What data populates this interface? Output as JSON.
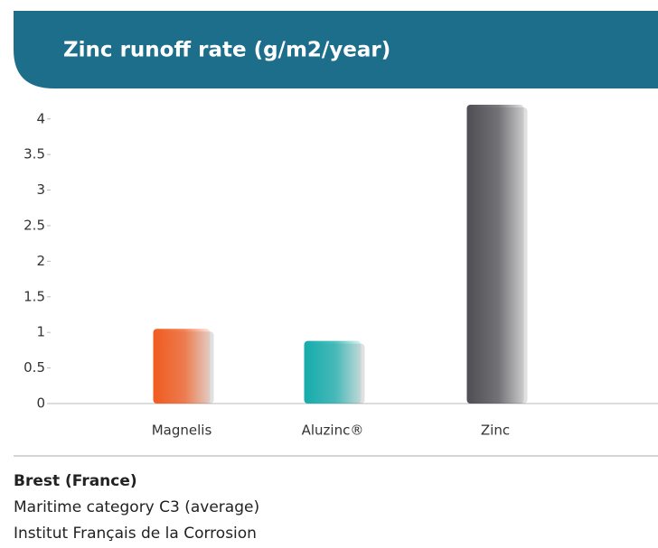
{
  "chart_data": {
    "type": "bar",
    "title": "Zinc runoff rate (g/m2/year)",
    "categories": [
      "Magnelis",
      "Aluzinc®",
      "Zinc"
    ],
    "values": [
      1.05,
      0.88,
      4.2
    ],
    "colors": [
      "#f05a1e",
      "#14abab",
      "#4d4d53"
    ],
    "ylim": [
      0,
      4.2
    ],
    "yticks": [
      0,
      0.5,
      1,
      1.5,
      2,
      2.5,
      3,
      3.5,
      4
    ],
    "grid": false
  },
  "footer": {
    "location": "Brest (France)",
    "lines": [
      "Maritime category C3 (average)",
      "Institut Français de la Corrosion"
    ]
  }
}
